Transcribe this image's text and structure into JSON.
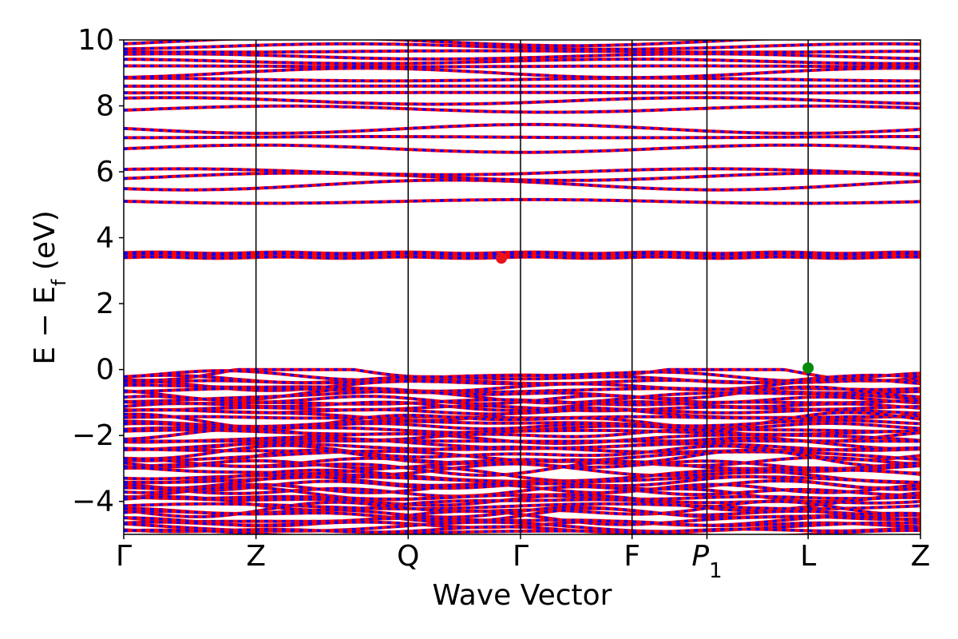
{
  "chart_data": {
    "type": "line",
    "xlabel": "Wave Vector",
    "ylabel": "E − E_f (eV)",
    "ylim": [
      -5,
      10
    ],
    "yticks": [
      -4,
      -2,
      0,
      2,
      4,
      6,
      8,
      10
    ],
    "ytick_labels": [
      "−4",
      "−2",
      "0",
      "2",
      "4",
      "6",
      "8",
      "10"
    ],
    "kpath": [
      {
        "label": "Γ",
        "x": 0.0
      },
      {
        "label": "Z",
        "x": 0.166
      },
      {
        "label": "Q",
        "x": 0.357
      },
      {
        "label": "Γ",
        "x": 0.498
      },
      {
        "label": "F",
        "x": 0.638
      },
      {
        "label": "P",
        "sub": "1",
        "x": 0.732
      },
      {
        "label": "L",
        "x": 0.859
      },
      {
        "label": "Z",
        "x": 1.0
      }
    ],
    "grid": "vertical lines at high-symmetry points",
    "series": [
      {
        "color": "#ff0000",
        "style": "solid"
      },
      {
        "color": "#0000ff",
        "style": "dashed"
      }
    ],
    "markers": [
      {
        "color": "#e8141c",
        "x": 0.474,
        "y": 3.38
      },
      {
        "color": "#0a8a0a",
        "x": 0.859,
        "y": 0.05
      }
    ],
    "valence_bands": {
      "top": 0.0,
      "bottom": -5.0
    },
    "flat_bands": [
      3.42,
      3.52
    ],
    "conduction_bands": {
      "from": 5.1,
      "to": 10.0
    }
  }
}
